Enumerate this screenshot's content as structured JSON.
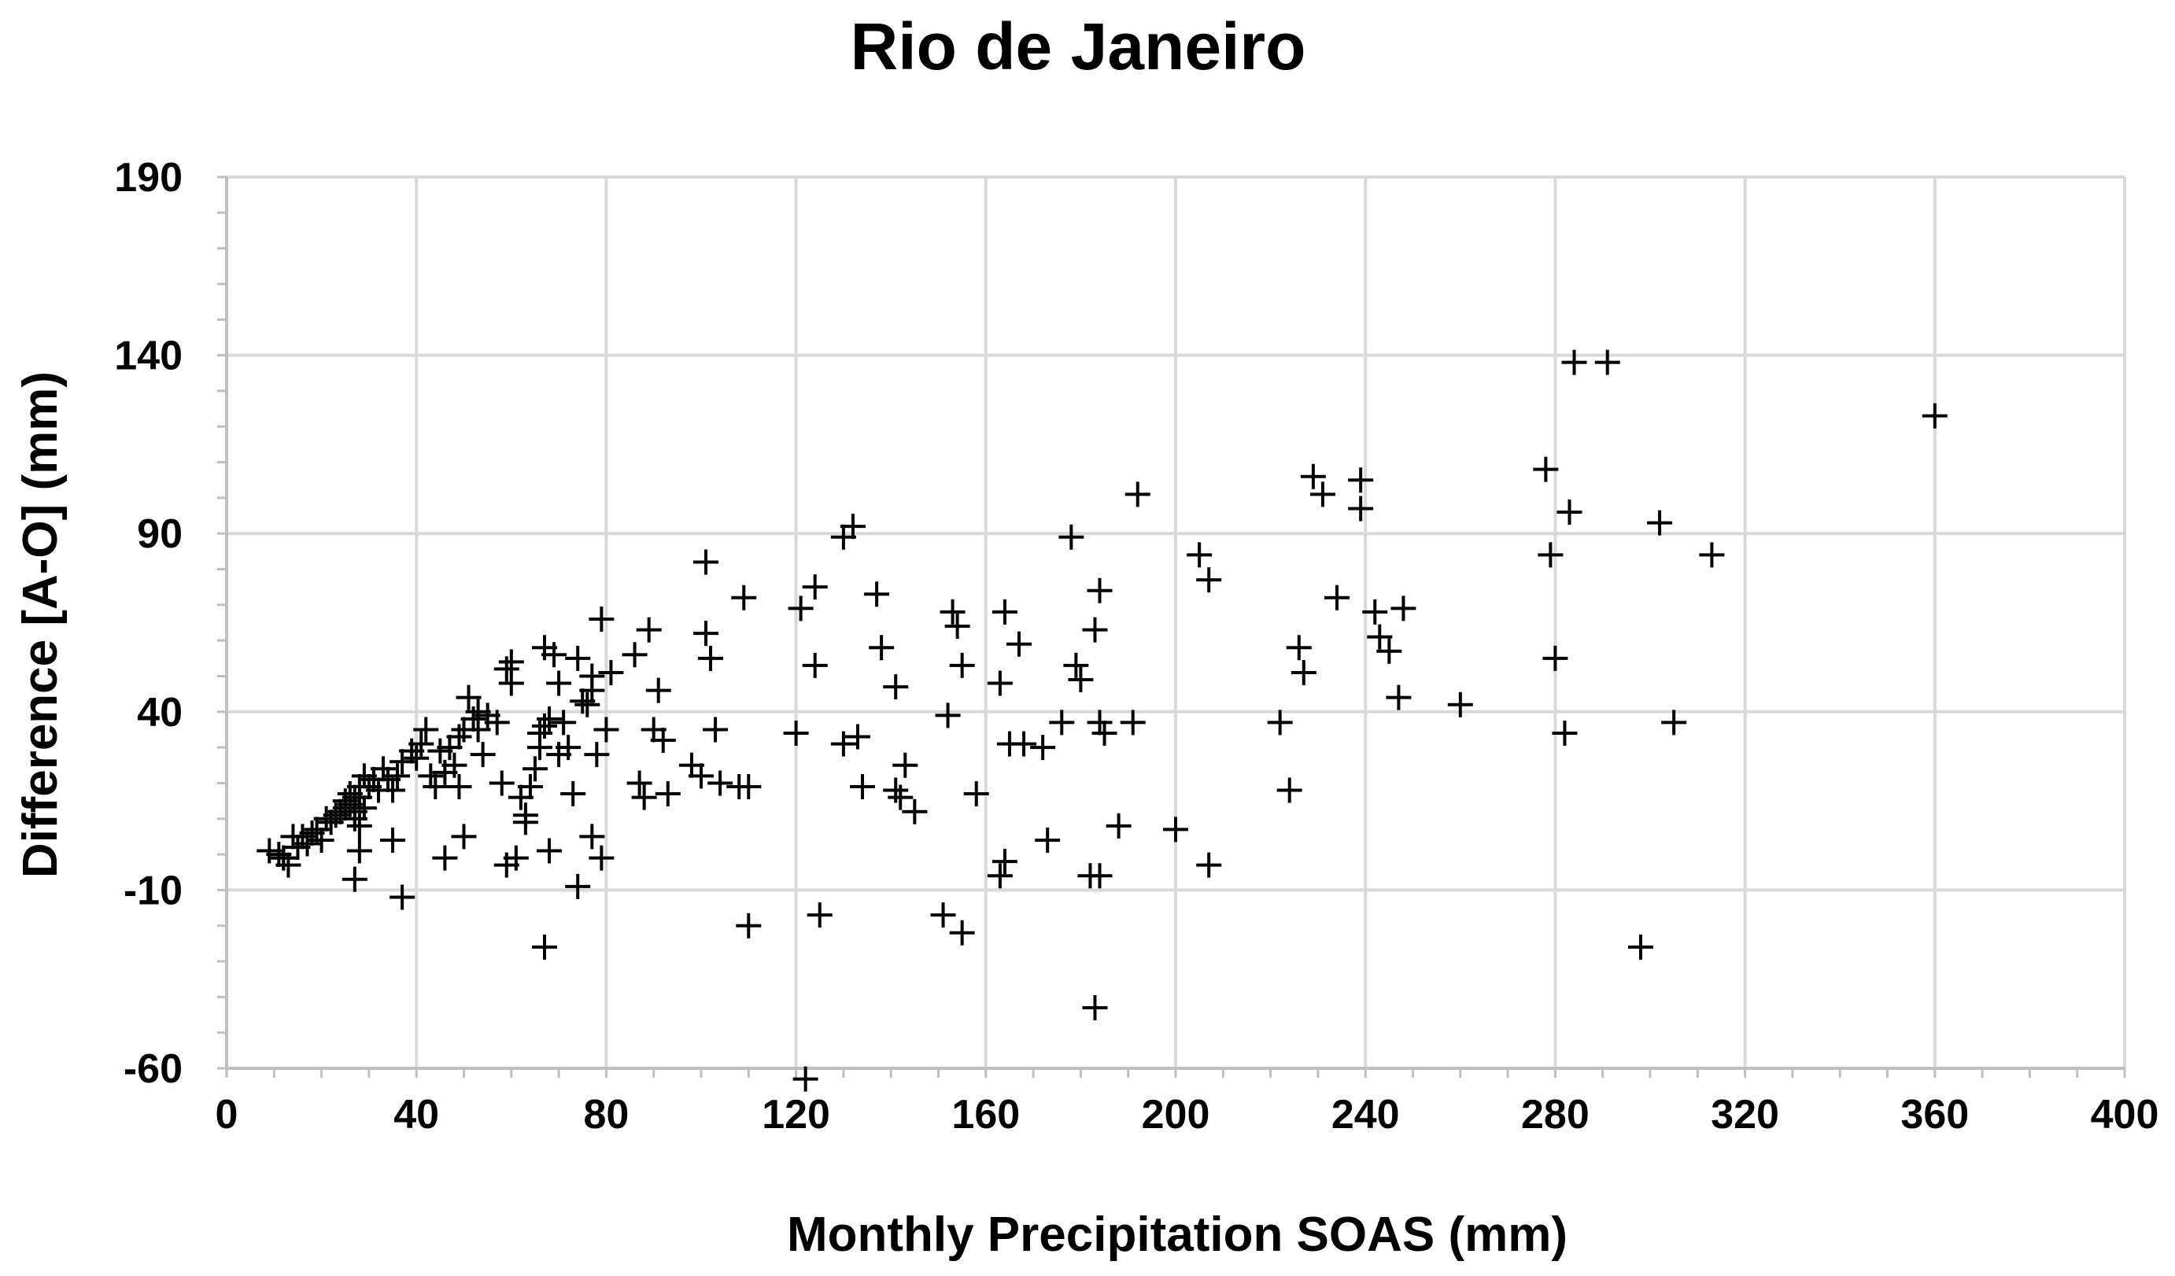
{
  "chart_data": {
    "type": "scatter",
    "title": "Rio de Janeiro",
    "xlabel": "Monthly Precipitation SOAS (mm)",
    "ylabel": "Difference [A-O] (mm)",
    "xlim": [
      0,
      400
    ],
    "ylim": [
      -60,
      190
    ],
    "x_ticks": [
      0,
      40,
      80,
      120,
      160,
      200,
      240,
      280,
      320,
      360,
      400
    ],
    "y_ticks": [
      -60,
      -10,
      40,
      90,
      140,
      190
    ],
    "x_tick_labels": [
      "0",
      "40",
      "80",
      "120",
      "160",
      "200",
      "240",
      "280",
      "320",
      "360",
      "400"
    ],
    "y_tick_labels": [
      "-60",
      "-10",
      "40",
      "90",
      "140",
      "190"
    ],
    "marker": "plus",
    "marker_color": "#000000",
    "grid": true,
    "series": [
      {
        "name": "Difference",
        "points": [
          [
            9,
            1
          ],
          [
            11,
            0
          ],
          [
            12,
            -1
          ],
          [
            13,
            -3
          ],
          [
            14,
            5
          ],
          [
            15,
            2
          ],
          [
            16,
            5
          ],
          [
            17,
            3
          ],
          [
            18,
            6
          ],
          [
            19,
            7
          ],
          [
            20,
            4
          ],
          [
            21,
            10
          ],
          [
            22,
            9
          ],
          [
            23,
            11
          ],
          [
            24,
            12
          ],
          [
            25,
            13
          ],
          [
            25,
            15
          ],
          [
            26,
            17
          ],
          [
            26,
            14
          ],
          [
            27,
            16
          ],
          [
            27,
            10
          ],
          [
            27,
            12
          ],
          [
            28,
            19
          ],
          [
            28,
            16
          ],
          [
            28,
            8
          ],
          [
            29,
            22
          ],
          [
            29,
            13
          ],
          [
            30,
            19
          ],
          [
            31,
            21
          ],
          [
            32,
            18
          ],
          [
            33,
            24
          ],
          [
            34,
            21
          ],
          [
            35,
            18
          ],
          [
            36,
            22
          ],
          [
            37,
            26
          ],
          [
            39,
            29
          ],
          [
            40,
            27
          ],
          [
            41,
            31
          ],
          [
            42,
            35
          ],
          [
            43,
            22
          ],
          [
            44,
            19
          ],
          [
            45,
            29
          ],
          [
            46,
            23
          ],
          [
            47,
            30
          ],
          [
            48,
            25
          ],
          [
            49,
            33
          ],
          [
            49,
            19
          ],
          [
            50,
            35
          ],
          [
            51,
            44
          ],
          [
            52,
            38
          ],
          [
            53,
            35
          ],
          [
            53,
            40
          ],
          [
            54,
            28
          ],
          [
            55,
            39
          ],
          [
            57,
            37
          ],
          [
            58,
            20
          ],
          [
            59,
            52
          ],
          [
            60,
            54
          ],
          [
            60,
            48
          ],
          [
            62,
            16
          ],
          [
            63,
            9
          ],
          [
            63,
            11
          ],
          [
            64,
            19
          ],
          [
            65,
            24
          ],
          [
            66,
            34
          ],
          [
            66,
            30
          ],
          [
            67,
            58
          ],
          [
            67,
            36
          ],
          [
            68,
            38
          ],
          [
            69,
            56
          ],
          [
            70,
            48
          ],
          [
            70,
            28
          ],
          [
            71,
            37
          ],
          [
            72,
            30
          ],
          [
            73,
            17
          ],
          [
            74,
            55
          ],
          [
            75,
            43
          ],
          [
            76,
            42
          ],
          [
            77,
            50
          ],
          [
            77,
            46
          ],
          [
            78,
            28
          ],
          [
            79,
            66
          ],
          [
            80,
            35
          ],
          [
            81,
            51
          ],
          [
            86,
            56
          ],
          [
            87,
            20
          ],
          [
            88,
            16
          ],
          [
            89,
            63
          ],
          [
            90,
            35
          ],
          [
            91,
            46
          ],
          [
            92,
            32
          ],
          [
            93,
            17
          ],
          [
            98,
            25
          ],
          [
            100,
            22
          ],
          [
            101,
            82
          ],
          [
            101,
            62
          ],
          [
            102,
            55
          ],
          [
            103,
            35
          ],
          [
            104,
            20
          ],
          [
            108,
            19
          ],
          [
            109,
            72
          ],
          [
            110,
            19
          ],
          [
            120,
            34
          ],
          [
            121,
            69
          ],
          [
            124,
            53
          ],
          [
            124,
            75
          ],
          [
            130,
            31
          ],
          [
            130,
            89
          ],
          [
            132,
            92
          ],
          [
            133,
            33
          ],
          [
            134,
            19
          ],
          [
            137,
            73
          ],
          [
            138,
            58
          ],
          [
            141,
            47
          ],
          [
            141,
            18
          ],
          [
            142,
            16
          ],
          [
            143,
            25
          ],
          [
            145,
            12
          ],
          [
            152,
            39
          ],
          [
            153,
            68
          ],
          [
            154,
            64
          ],
          [
            155,
            53
          ],
          [
            158,
            17
          ],
          [
            163,
            48
          ],
          [
            164,
            68
          ],
          [
            165,
            31
          ],
          [
            167,
            59
          ],
          [
            168,
            31
          ],
          [
            172,
            30
          ],
          [
            173,
            4
          ],
          [
            176,
            37
          ],
          [
            178,
            89
          ],
          [
            179,
            53
          ],
          [
            180,
            49
          ],
          [
            183,
            63
          ],
          [
            184,
            37
          ],
          [
            184,
            74
          ],
          [
            185,
            34
          ],
          [
            188,
            8
          ],
          [
            191,
            37
          ],
          [
            192,
            101
          ],
          [
            200,
            7
          ],
          [
            205,
            84
          ],
          [
            207,
            77
          ],
          [
            222,
            37
          ],
          [
            224,
            18
          ],
          [
            226,
            58
          ],
          [
            227,
            51
          ],
          [
            229,
            106
          ],
          [
            231,
            101
          ],
          [
            234,
            72
          ],
          [
            239,
            97
          ],
          [
            239,
            105
          ],
          [
            242,
            68
          ],
          [
            243,
            61
          ],
          [
            245,
            57
          ],
          [
            247,
            44
          ],
          [
            248,
            69
          ],
          [
            260,
            42
          ],
          [
            278,
            108
          ],
          [
            279,
            84
          ],
          [
            280,
            55
          ],
          [
            282,
            34
          ],
          [
            283,
            96
          ],
          [
            284,
            138
          ],
          [
            291,
            138
          ],
          [
            302,
            93
          ],
          [
            305,
            37
          ],
          [
            313,
            84
          ],
          [
            360,
            123
          ],
          [
            12,
            -1
          ],
          [
            27,
            -7
          ],
          [
            28,
            1
          ],
          [
            35,
            4
          ],
          [
            37,
            -12
          ],
          [
            46,
            -1
          ],
          [
            50,
            5
          ],
          [
            59,
            -3
          ],
          [
            61,
            -1
          ],
          [
            67,
            -26
          ],
          [
            68,
            1
          ],
          [
            74,
            -9
          ],
          [
            77,
            5
          ],
          [
            79,
            -1
          ],
          [
            110,
            -20
          ],
          [
            122,
            -63
          ],
          [
            125,
            -17
          ],
          [
            151,
            -17
          ],
          [
            155,
            -22
          ],
          [
            163,
            -6
          ],
          [
            164,
            -2
          ],
          [
            182,
            -6
          ],
          [
            184,
            -6
          ],
          [
            183,
            -43
          ],
          [
            207,
            -3
          ],
          [
            298,
            -26
          ]
        ]
      }
    ]
  }
}
